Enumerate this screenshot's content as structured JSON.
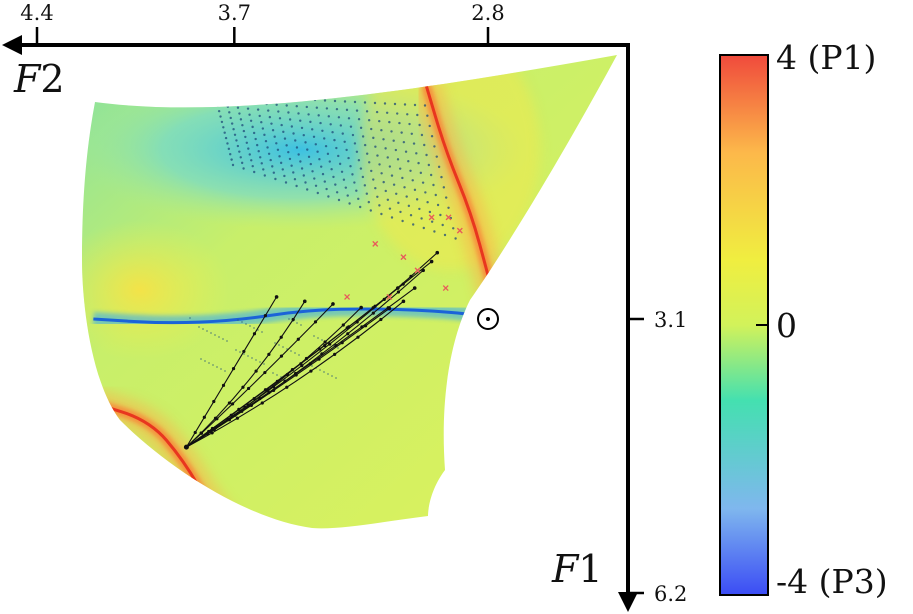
{
  "chart_data": {
    "type": "heatmap",
    "title": "",
    "x_axis": {
      "label_var": "F",
      "label_sub": "2",
      "direction": "reversed",
      "range": [
        4.4,
        2.55
      ],
      "ticks": [
        {
          "value": 4.4,
          "label": "4.4"
        },
        {
          "value": 3.7,
          "label": "3.7"
        },
        {
          "value": 2.8,
          "label": "2.8"
        }
      ]
    },
    "y_axis": {
      "label_var": "F",
      "label_sub": "1",
      "direction": "downward",
      "range": [
        0.0,
        6.2
      ],
      "ticks": [
        {
          "value": 3.1,
          "label": "3.1"
        },
        {
          "value": 6.2,
          "label": "6.2"
        }
      ]
    },
    "colorbar": {
      "range": [
        -4,
        4
      ],
      "ticks": [
        {
          "value": 4,
          "label": "4 (P1)"
        },
        {
          "value": 0,
          "label": "0"
        },
        {
          "value": -4,
          "label": "-4 (P3)"
        }
      ],
      "colors": [
        "#3b4cf5",
        "#7fb7ee",
        "#44e0b0",
        "#d2f25a",
        "#f0ee40",
        "#fcb84a",
        "#f04a3c"
      ]
    },
    "regions": [
      {
        "name": "P1-ridge-upper",
        "value": 4,
        "points": [
          [
            3.02,
            0.45
          ],
          [
            2.95,
            1.2
          ],
          [
            2.86,
            1.9
          ],
          [
            2.8,
            2.6
          ],
          [
            2.76,
            3.1
          ]
        ]
      },
      {
        "name": "P1-ridge-lower",
        "value": 4,
        "points": [
          [
            4.2,
            4.05
          ],
          [
            4.0,
            4.25
          ],
          [
            3.88,
            4.7
          ],
          [
            3.78,
            5.25
          ],
          [
            3.6,
            5.9
          ]
        ]
      },
      {
        "name": "P3-line",
        "value": -4,
        "points": [
          [
            4.2,
            3.1
          ],
          [
            3.95,
            3.15
          ],
          [
            3.7,
            3.12
          ],
          [
            3.45,
            3.0
          ],
          [
            3.2,
            2.98
          ],
          [
            2.92,
            3.02
          ],
          [
            2.76,
            3.1
          ]
        ]
      }
    ],
    "points_of_interest": [
      {
        "name": "equilibrium",
        "x": 2.8,
        "y": 3.1
      }
    ],
    "trajectory_origin": {
      "x": 3.87,
      "y": 4.55
    },
    "trajectory_endpoints": [
      {
        "x": 3.55,
        "y": 2.85
      },
      {
        "x": 3.45,
        "y": 2.9
      },
      {
        "x": 3.35,
        "y": 2.93
      },
      {
        "x": 3.25,
        "y": 2.97
      },
      {
        "x": 3.15,
        "y": 2.98
      },
      {
        "x": 3.1,
        "y": 2.9
      },
      {
        "x": 3.06,
        "y": 2.75
      },
      {
        "x": 3.03,
        "y": 2.55
      },
      {
        "x": 3.0,
        "y": 2.45
      },
      {
        "x": 2.98,
        "y": 2.35
      },
      {
        "x": 3.12,
        "y": 2.75
      }
    ],
    "red_markers": [
      {
        "x": 3.0,
        "y": 1.95
      },
      {
        "x": 2.94,
        "y": 1.95
      },
      {
        "x": 2.9,
        "y": 2.1
      },
      {
        "x": 3.2,
        "y": 2.25
      },
      {
        "x": 3.1,
        "y": 2.4
      },
      {
        "x": 3.05,
        "y": 2.55
      },
      {
        "x": 3.3,
        "y": 2.85
      },
      {
        "x": 3.15,
        "y": 2.85
      },
      {
        "x": 2.95,
        "y": 2.75
      }
    ],
    "grid": false,
    "legend": "none"
  }
}
